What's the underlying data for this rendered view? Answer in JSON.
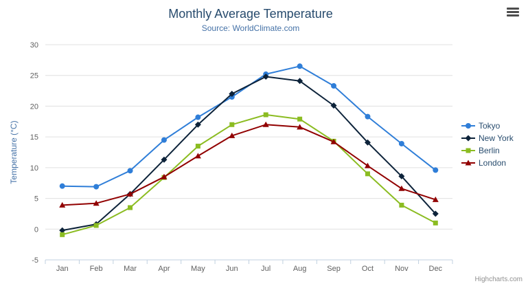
{
  "chart": {
    "title": "Monthly Average Temperature",
    "subtitle": "Source: WorldClimate.com",
    "credits": "Highcharts.com"
  },
  "chart_data": {
    "type": "line",
    "title": "Monthly Average Temperature",
    "subtitle": "Source: WorldClimate.com",
    "categories": [
      "Jan",
      "Feb",
      "Mar",
      "Apr",
      "May",
      "Jun",
      "Jul",
      "Aug",
      "Sep",
      "Oct",
      "Nov",
      "Dec"
    ],
    "series": [
      {
        "name": "Tokyo",
        "color": "#2f7ed8",
        "marker": "circle",
        "values": [
          7.0,
          6.9,
          9.5,
          14.5,
          18.2,
          21.5,
          25.2,
          26.5,
          23.3,
          18.3,
          13.9,
          9.6
        ]
      },
      {
        "name": "New York",
        "color": "#0d233a",
        "marker": "diamond",
        "values": [
          -0.2,
          0.8,
          5.7,
          11.3,
          17.0,
          22.0,
          24.8,
          24.1,
          20.1,
          14.1,
          8.6,
          2.5
        ]
      },
      {
        "name": "Berlin",
        "color": "#8bbc21",
        "marker": "square",
        "values": [
          -0.9,
          0.6,
          3.5,
          8.4,
          13.5,
          17.0,
          18.6,
          17.9,
          14.3,
          9.0,
          3.9,
          1.0
        ]
      },
      {
        "name": "London",
        "color": "#910000",
        "marker": "triangle",
        "values": [
          3.9,
          4.2,
          5.7,
          8.5,
          11.9,
          15.2,
          17.0,
          16.6,
          14.2,
          10.3,
          6.6,
          4.8
        ]
      }
    ],
    "xlabel": "",
    "ylabel": "Temperature (°C)",
    "ylim": [
      -5,
      30
    ],
    "ytick_step": 5,
    "grid": true,
    "legend_position": "right"
  },
  "colors": {
    "title": "#274b6d",
    "subtitle": "#4572a7",
    "tick_label": "#606060",
    "grid": "#e0e0e0",
    "axis_line": "#c0d0e0",
    "ylabel_color": "#4572a7",
    "legend_text": "#274b6d",
    "credits": "#909090",
    "menu_icon": "#4d4d4d"
  }
}
